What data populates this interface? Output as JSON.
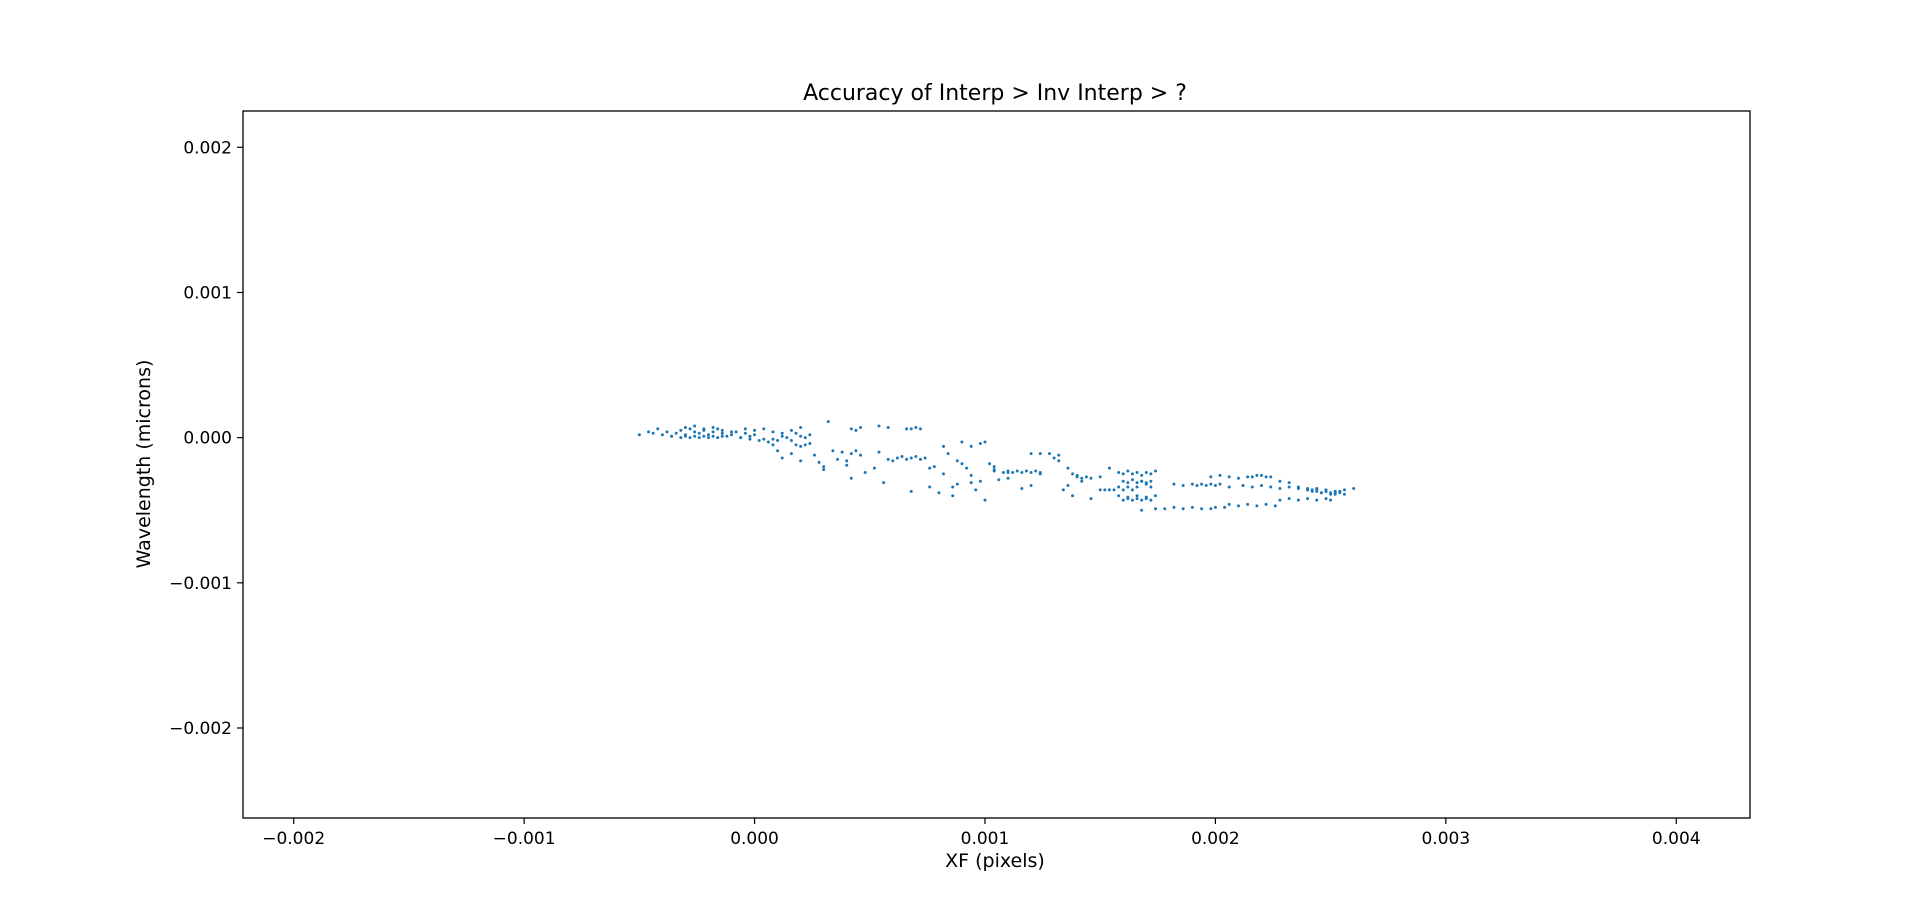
{
  "chart_data": {
    "type": "scatter",
    "title": "Accuracy of Interp > Inv Interp > ?",
    "xlabel": "XF (pixels)",
    "ylabel": "Wavelength (microns)",
    "xlim": [
      -0.00222,
      0.00432
    ],
    "ylim": [
      -0.00262,
      0.00225
    ],
    "x_ticks": [
      -0.002,
      -0.001,
      0.0,
      0.001,
      0.002,
      0.003,
      0.004
    ],
    "x_tick_labels": [
      "−0.002",
      "−0.001",
      "0.000",
      "0.001",
      "0.002",
      "0.003",
      "0.004"
    ],
    "y_ticks": [
      0.002,
      0.001,
      0.0,
      -0.001,
      -0.002
    ],
    "y_tick_labels": [
      "0.002",
      "0.001",
      "0.000",
      "−0.001",
      "−0.002"
    ],
    "grid": false,
    "legend": "none",
    "marker_color": "#1f77b4",
    "series": [
      {
        "x": [
          -0.0005,
          -0.00046,
          -0.00044,
          -0.00042,
          -0.0004,
          -0.00038,
          -0.00036,
          -0.00034,
          -0.00032,
          -0.0003,
          -0.00028,
          -0.00026,
          -0.00024,
          -0.00022,
          -0.0002,
          -0.00018,
          -0.00016,
          -0.00014,
          -0.00012,
          -0.0001,
          -8e-05,
          -6e-05,
          -4e-05,
          -2e-05,
          0.0,
          -0.00036,
          -0.00032,
          -0.0003,
          -0.00028,
          -0.00026,
          -0.00024,
          -0.00022,
          -0.0002,
          -0.00018,
          -0.00016,
          -0.00014,
          -6e-05,
          -2e-05,
          2e-05,
          4e-05,
          6e-05,
          8e-05,
          0.0001,
          0.00012,
          0.00014,
          0.00016,
          0.00018,
          0.0002,
          0.00022,
          -0.0003,
          -0.00026,
          -0.00022,
          -0.00018,
          -0.00014,
          -0.0001,
          -4e-05,
          0.0,
          4e-05,
          8e-05,
          0.00012,
          0.00016,
          0.0002,
          0.00024,
          0.00032,
          0.00042,
          0.00044,
          0.00046,
          0.00054,
          0.00058,
          0.00066,
          0.00068,
          0.0007,
          0.00072,
          8e-05,
          0.0001,
          0.00016,
          0.00018,
          0.0002,
          0.00022,
          0.00024,
          0.00012,
          0.0002,
          0.00026,
          0.0003,
          0.00034,
          0.00038,
          0.0004,
          0.00042,
          0.00044,
          0.00046,
          0.00028,
          0.0003,
          0.00036,
          0.0004,
          0.00042,
          0.00048,
          0.00052,
          0.00056,
          0.0006,
          0.00062,
          0.00064,
          0.00066,
          0.00068,
          0.0007,
          0.00072,
          0.00074,
          0.00076,
          0.00054,
          0.00058,
          0.00068,
          0.00078,
          0.00082,
          0.00086,
          0.00088,
          0.0009,
          0.00092,
          0.00094,
          0.00096,
          0.001,
          0.00104,
          0.00106,
          0.0011,
          0.00082,
          0.00084,
          0.00088,
          0.0009,
          0.00094,
          0.00098,
          0.001,
          0.00102,
          0.00104,
          0.00108,
          0.0011,
          0.00112,
          0.00114,
          0.00116,
          0.00118,
          0.0012,
          0.00122,
          0.00124,
          0.00076,
          0.0008,
          0.00086,
          0.00094,
          0.00098,
          0.00104,
          0.0011,
          0.00116,
          0.0012,
          0.00124,
          0.0012,
          0.00124,
          0.00128,
          0.00132,
          0.00136,
          0.00138,
          0.0014,
          0.00142,
          0.00144,
          0.00146,
          0.0015,
          0.00154,
          0.0013,
          0.00132,
          0.00134,
          0.00136,
          0.00138,
          0.0014,
          0.00142,
          0.00146,
          0.0015,
          0.00152,
          0.00154,
          0.00156,
          0.00158,
          0.0016,
          0.00162,
          0.00164,
          0.00166,
          0.00168,
          0.0017,
          0.00172,
          0.00158,
          0.0016,
          0.00162,
          0.00164,
          0.00166,
          0.00168,
          0.0017,
          0.00172,
          0.00174,
          0.0016,
          0.00162,
          0.00164,
          0.00166,
          0.00168,
          0.0017,
          0.00172,
          0.00158,
          0.00162,
          0.00166,
          0.0017,
          0.00174,
          0.0016,
          0.00162,
          0.00164,
          0.00166,
          0.00168,
          0.0017,
          0.00172,
          0.00168,
          0.00174,
          0.00178,
          0.00182,
          0.00186,
          0.0019,
          0.00194,
          0.00198,
          0.002,
          0.00204,
          0.00182,
          0.00186,
          0.0019,
          0.00192,
          0.00194,
          0.00196,
          0.00198,
          0.002,
          0.00202,
          0.00206,
          0.0021,
          0.00214,
          0.00218,
          0.00222,
          0.00226,
          0.00206,
          0.00212,
          0.00216,
          0.0022,
          0.00224,
          0.00228,
          0.00232,
          0.00236,
          0.0024,
          0.00244,
          0.00248,
          0.00252,
          0.00256,
          0.0026,
          0.00216,
          0.0022,
          0.00224,
          0.00228,
          0.00232,
          0.00236,
          0.0024,
          0.00242,
          0.00244,
          0.00246,
          0.00248,
          0.0025,
          0.00252,
          0.00254,
          0.00256,
          0.00228,
          0.00232,
          0.00236,
          0.0024,
          0.00244,
          0.00248,
          0.0025,
          0.00198,
          0.00202,
          0.00206,
          0.0021,
          0.00214,
          0.00218,
          0.00222,
          0.0024,
          0.00242,
          0.00244,
          0.00246,
          0.00248,
          0.0025,
          0.00252,
          0.00254
        ],
        "y": [
          2e-05,
          4e-05,
          3e-05,
          6e-05,
          2e-05,
          4e-05,
          1e-05,
          3e-05,
          5e-05,
          2e-05,
          6e-05,
          4e-05,
          3e-05,
          5e-05,
          2e-05,
          4e-05,
          6e-05,
          3e-05,
          1e-05,
          2e-05,
          4e-05,
          0.0,
          3e-05,
          1e-05,
          2e-05,
          1e-05,
          0.0,
          1e-05,
          0.0,
          1e-05,
          0.0,
          1e-05,
          0.0,
          1e-05,
          0.0,
          1e-05,
          0.0,
          -1e-05,
          -2e-05,
          -1e-05,
          -3e-05,
          -1e-05,
          -2e-05,
          1e-05,
          0.0,
          -2e-05,
          3e-05,
          1e-05,
          0.0,
          7e-05,
          8e-05,
          6e-05,
          7e-05,
          5e-05,
          4e-05,
          6e-05,
          5e-05,
          6e-05,
          4e-05,
          3e-05,
          5e-05,
          7e-05,
          2e-05,
          0.00011,
          6e-05,
          5e-05,
          7e-05,
          8e-05,
          7e-05,
          6e-05,
          6e-05,
          7e-05,
          6e-05,
          -5e-05,
          -9e-05,
          -0.00011,
          -5e-05,
          -6e-05,
          -5e-05,
          -4e-05,
          -0.00014,
          -0.00016,
          -0.00012,
          -0.0002,
          -9e-05,
          -0.0001,
          -0.00016,
          -0.00011,
          -9e-05,
          -0.00012,
          -0.00017,
          -0.00022,
          -0.00015,
          -0.00019,
          -0.00028,
          -0.00024,
          -0.00021,
          -0.00031,
          -0.00016,
          -0.00014,
          -0.00013,
          -0.00015,
          -0.00014,
          -0.00013,
          -0.00015,
          -0.00014,
          -0.00021,
          -0.0001,
          -0.00015,
          -0.00037,
          -0.0002,
          -0.00025,
          -0.00034,
          -0.00016,
          -0.00018,
          -0.00021,
          -0.00026,
          -0.00036,
          -0.00043,
          -0.0002,
          -0.00029,
          -0.00028,
          -6e-05,
          -0.00011,
          -0.00032,
          -3e-05,
          -6e-05,
          -4e-05,
          -3e-05,
          -0.00018,
          -0.00023,
          -0.00024,
          -0.00023,
          -0.00024,
          -0.00023,
          -0.00024,
          -0.00023,
          -0.00024,
          -0.00023,
          -0.00024,
          -0.00034,
          -0.00038,
          -0.0004,
          -0.00031,
          -0.0003,
          -0.00022,
          -0.00024,
          -0.00035,
          -0.00033,
          -0.00025,
          -0.00011,
          -0.00011,
          -0.00011,
          -0.00012,
          -0.00021,
          -0.00025,
          -0.00027,
          -0.00028,
          -0.00027,
          -0.00028,
          -0.00027,
          -0.00021,
          -0.00014,
          -0.00016,
          -0.00036,
          -0.00033,
          -0.0004,
          -0.00026,
          -0.0003,
          -0.00042,
          -0.00036,
          -0.00036,
          -0.00036,
          -0.00036,
          -0.00034,
          -0.00036,
          -0.00034,
          -0.00036,
          -0.00034,
          -0.0003,
          -0.00032,
          -0.00034,
          -0.00024,
          -0.00025,
          -0.00023,
          -0.00025,
          -0.00024,
          -0.00026,
          -0.00024,
          -0.00025,
          -0.00023,
          -0.0003,
          -0.00031,
          -0.00029,
          -0.00031,
          -0.0003,
          -0.00031,
          -0.0003,
          -0.0004,
          -0.00041,
          -0.0004,
          -0.00041,
          -0.0004,
          -0.00043,
          -0.00042,
          -0.00043,
          -0.00042,
          -0.00043,
          -0.00042,
          -0.00043,
          -0.0005,
          -0.00049,
          -0.00049,
          -0.00048,
          -0.00049,
          -0.00048,
          -0.00049,
          -0.00049,
          -0.00048,
          -0.00048,
          -0.00032,
          -0.00033,
          -0.00032,
          -0.00033,
          -0.00032,
          -0.00033,
          -0.00032,
          -0.00033,
          -0.00032,
          -0.00046,
          -0.00047,
          -0.00046,
          -0.00047,
          -0.00046,
          -0.00047,
          -0.00034,
          -0.00033,
          -0.00034,
          -0.00033,
          -0.00034,
          -0.00035,
          -0.00034,
          -0.00035,
          -0.00036,
          -0.00035,
          -0.00036,
          -0.00037,
          -0.00036,
          -0.00035,
          -0.00027,
          -0.00026,
          -0.00027,
          -0.0003,
          -0.00031,
          -0.00034,
          -0.00035,
          -0.00036,
          -0.00037,
          -0.00038,
          -0.00037,
          -0.00038,
          -0.00039,
          -0.00038,
          -0.00039,
          -0.00043,
          -0.00042,
          -0.00043,
          -0.00042,
          -0.00043,
          -0.00042,
          -0.00043,
          -0.00027,
          -0.00026,
          -0.00027,
          -0.00028,
          -0.00027,
          -0.00026,
          -0.00027,
          -0.00036,
          -0.00037,
          -0.00036,
          -0.00038,
          -0.00037,
          -0.00039,
          -0.00038,
          -0.00037
        ]
      }
    ]
  }
}
